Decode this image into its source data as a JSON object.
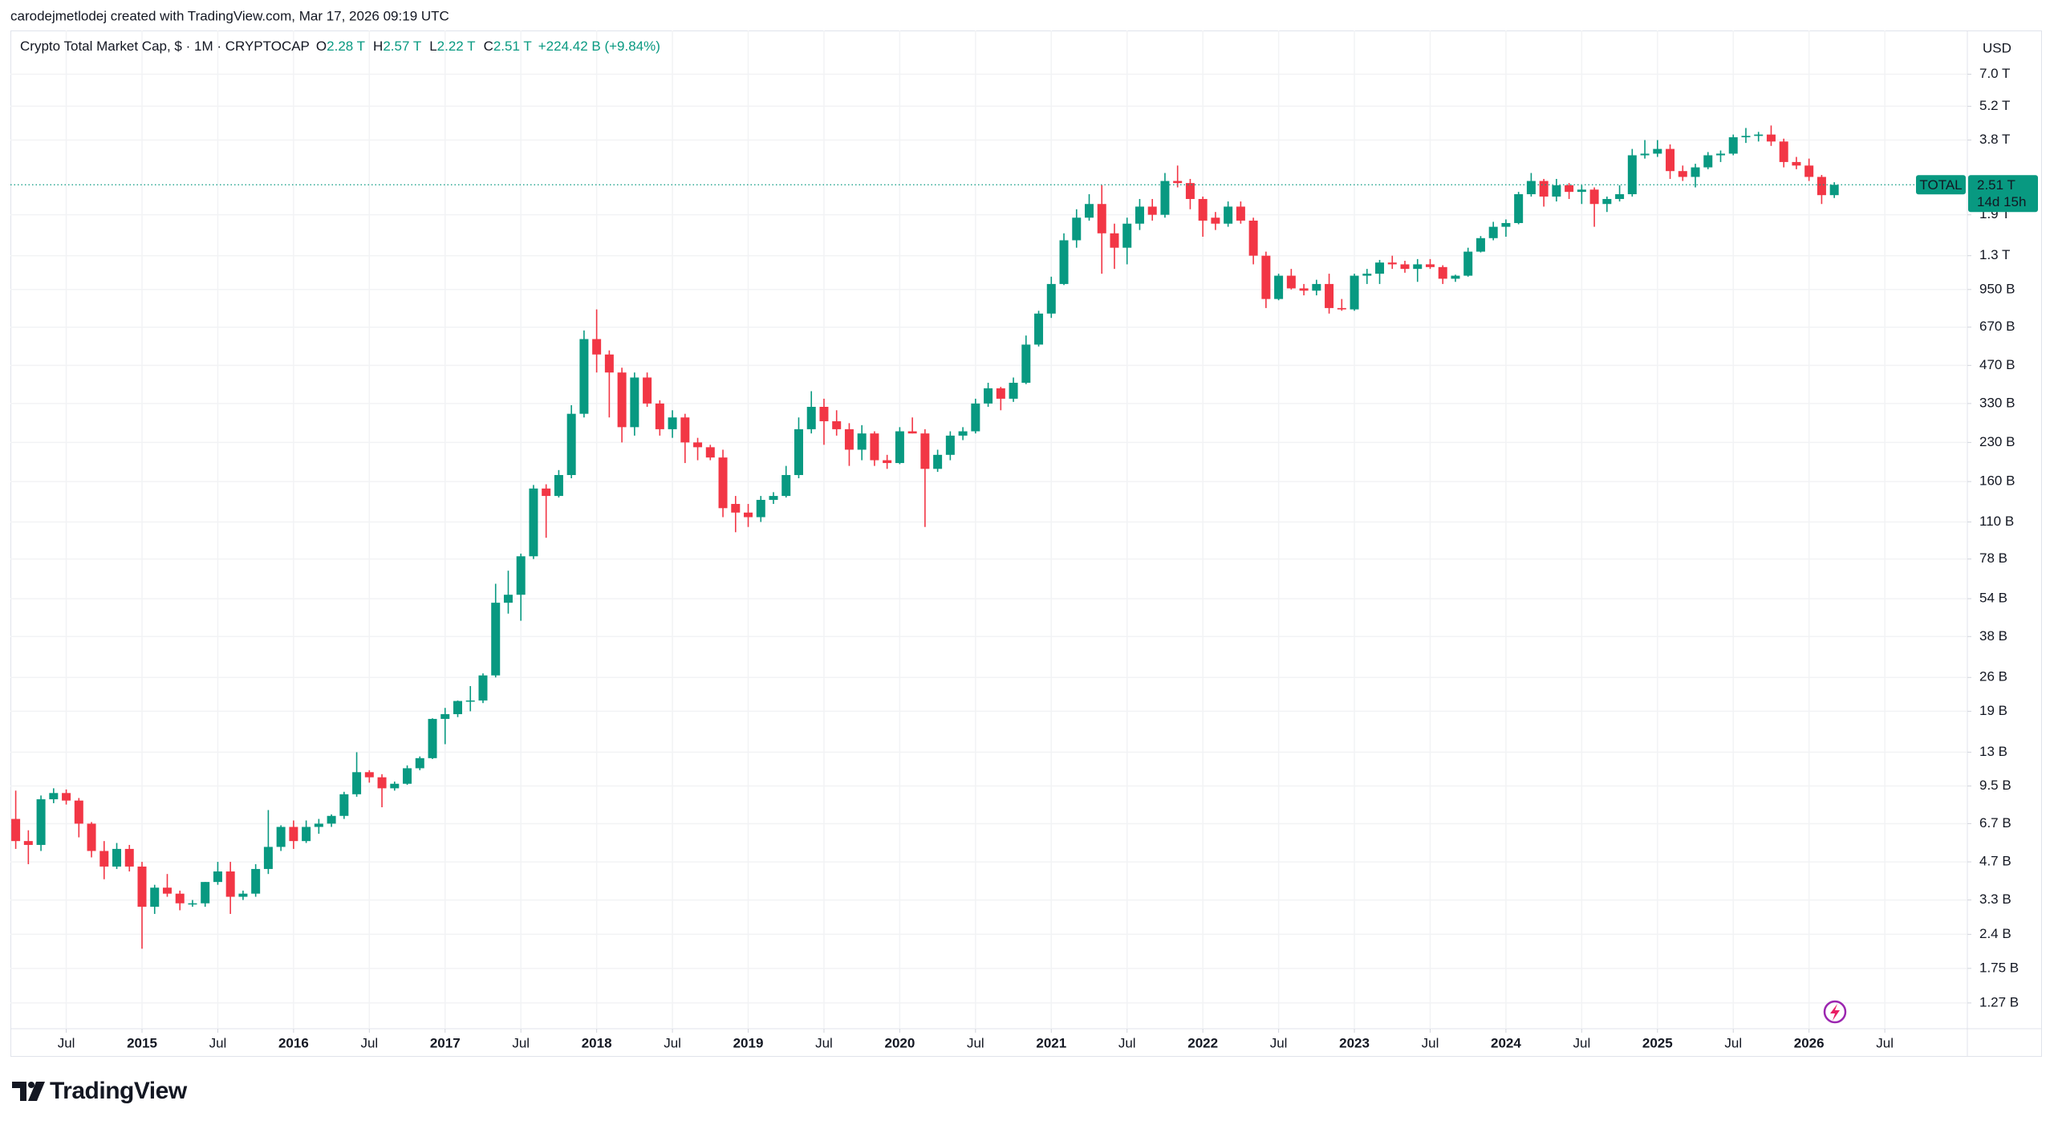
{
  "chart_data": {
    "type": "candlestick",
    "attribution": "carodejmetlodej created with TradingView.com, Mar 17, 2026 09:19 UTC",
    "title": "Crypto Total Market Cap, $ · 1M · CRYPTOCAP",
    "legend": [
      {
        "key": "O",
        "value": "2.28 T"
      },
      {
        "key": "H",
        "value": "2.57 T"
      },
      {
        "key": "L",
        "value": "2.22 T"
      },
      {
        "key": "C",
        "value": "2.51 T"
      }
    ],
    "change": "+224.42 B (+9.84%)",
    "currency": "USD",
    "series_name": "TOTAL",
    "last_value_label": "2.51 T",
    "countdown": "14d 15h",
    "brand": "TradingView",
    "up_color": "#089981",
    "down_color": "#f23645",
    "log_scale": true,
    "grid": true,
    "x": [
      "2014-03",
      "2014-04",
      "2014-05",
      "2014-06",
      "2014-07",
      "2014-08",
      "2014-09",
      "2014-10",
      "2014-11",
      "2014-12",
      "2015-01",
      "2015-02",
      "2015-03",
      "2015-04",
      "2015-05",
      "2015-06",
      "2015-07",
      "2015-08",
      "2015-09",
      "2015-10",
      "2015-11",
      "2015-12",
      "2016-01",
      "2016-02",
      "2016-03",
      "2016-04",
      "2016-05",
      "2016-06",
      "2016-07",
      "2016-08",
      "2016-09",
      "2016-10",
      "2016-11",
      "2016-12",
      "2017-01",
      "2017-02",
      "2017-03",
      "2017-04",
      "2017-05",
      "2017-06",
      "2017-07",
      "2017-08",
      "2017-09",
      "2017-10",
      "2017-11",
      "2017-12",
      "2018-01",
      "2018-02",
      "2018-03",
      "2018-04",
      "2018-05",
      "2018-06",
      "2018-07",
      "2018-08",
      "2018-09",
      "2018-10",
      "2018-11",
      "2018-12",
      "2019-01",
      "2019-02",
      "2019-03",
      "2019-04",
      "2019-05",
      "2019-06",
      "2019-07",
      "2019-08",
      "2019-09",
      "2019-10",
      "2019-11",
      "2019-12",
      "2020-01",
      "2020-02",
      "2020-03",
      "2020-04",
      "2020-05",
      "2020-06",
      "2020-07",
      "2020-08",
      "2020-09",
      "2020-10",
      "2020-11",
      "2020-12",
      "2021-01",
      "2021-02",
      "2021-03",
      "2021-04",
      "2021-05",
      "2021-06",
      "2021-07",
      "2021-08",
      "2021-09",
      "2021-10",
      "2021-11",
      "2021-12",
      "2022-01",
      "2022-02",
      "2022-03",
      "2022-04",
      "2022-05",
      "2022-06",
      "2022-07",
      "2022-08",
      "2022-09",
      "2022-10",
      "2022-11",
      "2022-12",
      "2023-01",
      "2023-02",
      "2023-03",
      "2023-04",
      "2023-05",
      "2023-06",
      "2023-07",
      "2023-08",
      "2023-09",
      "2023-10",
      "2023-11",
      "2023-12",
      "2024-01",
      "2024-02",
      "2024-03",
      "2024-04",
      "2024-05",
      "2024-06",
      "2024-07",
      "2024-08",
      "2024-09",
      "2024-10",
      "2024-11",
      "2024-12",
      "2025-01",
      "2025-02",
      "2025-03",
      "2025-04",
      "2025-05",
      "2025-06",
      "2025-07",
      "2025-08",
      "2025-09",
      "2025-10",
      "2025-11",
      "2025-12",
      "2026-01",
      "2026-02",
      "2026-03"
    ],
    "open": [
      7.0,
      5.7,
      5.5,
      8.4,
      8.9,
      8.3,
      6.7,
      5.2,
      4.5,
      5.3,
      4.5,
      3.1,
      3.7,
      3.5,
      3.2,
      3.2,
      3.9,
      4.3,
      3.4,
      3.5,
      4.4,
      5.4,
      6.5,
      5.7,
      6.5,
      6.7,
      7.2,
      8.8,
      10.8,
      10.3,
      9.3,
      9.7,
      11.2,
      12.3,
      17.7,
      18.5,
      20.9,
      21,
      26.5,
      52,
      56,
      80,
      150,
      140,
      170,
      300,
      600,
      520,
      440,
      265,
      420,
      330,
      260,
      290,
      230,
      220,
      200,
      130,
      120,
      115,
      135,
      140,
      170,
      260,
      320,
      280,
      260,
      215,
      250,
      195,
      190,
      255,
      250,
      180,
      205,
      245,
      255,
      330,
      380,
      345,
      400,
      570,
      760,
      1000,
      1500,
      1850,
      2100,
      1600,
      1400,
      1750,
      2050,
      1900,
      2600,
      2550,
      2200,
      1850,
      1750,
      2050,
      1800,
      1300,
      870,
      1080,
      960,
      940,
      1000,
      800,
      790,
      1080,
      1100,
      1220,
      1200,
      1150,
      1200,
      1170,
      1050,
      1080,
      1350,
      1530,
      1700,
      1760,
      2300,
      2600,
      2250,
      2500,
      2350,
      2400,
      2100,
      2200,
      2300,
      3300,
      3350,
      3500,
      2850,
      2700,
      2950,
      3300,
      3350,
      3900,
      3950,
      4000,
      3750,
      3100,
      3000,
      2700,
      2280
    ],
    "high": [
      9.1,
      6.3,
      8.7,
      9.3,
      9.2,
      8.5,
      6.8,
      5.7,
      5.6,
      5.5,
      4.7,
      3.8,
      4.2,
      3.6,
      3.3,
      3.9,
      4.7,
      4.7,
      3.6,
      4.6,
      7.6,
      6.6,
      6.9,
      6.9,
      7.0,
      7.3,
      9.0,
      13,
      11.0,
      10.6,
      9.9,
      11.5,
      12.5,
      17.8,
      19.6,
      21,
      24,
      27,
      62,
      70,
      82,
      155,
      156,
      178,
      325,
      650,
      790,
      540,
      460,
      440,
      440,
      340,
      310,
      300,
      240,
      225,
      215,
      140,
      130,
      140,
      145,
      185,
      290,
      370,
      345,
      310,
      275,
      270,
      255,
      205,
      265,
      290,
      260,
      215,
      255,
      265,
      345,
      400,
      385,
      420,
      620,
      780,
      1070,
      1600,
      2000,
      2300,
      2500,
      1750,
      1850,
      2200,
      2200,
      2800,
      3000,
      2650,
      2250,
      1950,
      2150,
      2150,
      1850,
      1350,
      1100,
      1150,
      1000,
      1040,
      1100,
      870,
      1100,
      1150,
      1250,
      1300,
      1240,
      1260,
      1260,
      1190,
      1090,
      1400,
      1560,
      1780,
      1820,
      2350,
      2800,
      2650,
      2650,
      2550,
      2500,
      2450,
      2250,
      2500,
      3500,
      3800,
      3800,
      3650,
      3000,
      3050,
      3400,
      3450,
      4000,
      4250,
      4100,
      4350,
      3850,
      3250,
      3200,
      2750,
      2570
    ],
    "low": [
      5.3,
      4.6,
      5.2,
      8.1,
      8.0,
      5.9,
      4.9,
      4.0,
      4.4,
      4.3,
      2.1,
      2.9,
      3.4,
      3.0,
      3.1,
      3.1,
      3.8,
      2.9,
      3.3,
      3.4,
      4.2,
      5.2,
      5.3,
      5.6,
      6.1,
      6.5,
      7.0,
      8.6,
      9.8,
      7.8,
      9.1,
      9.6,
      11.0,
      12.2,
      14,
      18,
      19,
      20.5,
      26,
      47,
      44,
      78,
      95,
      138,
      165,
      290,
      440,
      290,
      230,
      245,
      320,
      245,
      240,
      190,
      195,
      195,
      115,
      100,
      105,
      110,
      130,
      138,
      165,
      250,
      225,
      245,
      185,
      195,
      185,
      180,
      188,
      250,
      105,
      175,
      195,
      235,
      250,
      320,
      310,
      335,
      395,
      560,
      730,
      990,
      1400,
      1800,
      1100,
      1150,
      1200,
      1650,
      1800,
      1850,
      2450,
      2000,
      1550,
      1650,
      1700,
      1750,
      1200,
      800,
      860,
      950,
      900,
      900,
      760,
      780,
      780,
      1000,
      1000,
      1150,
      1110,
      1020,
      1150,
      1000,
      1020,
      1070,
      1340,
      1500,
      1550,
      1740,
      2250,
      2050,
      2150,
      2200,
      2100,
      1700,
      1950,
      2150,
      2250,
      3200,
      3250,
      2650,
      2600,
      2450,
      2900,
      3100,
      3300,
      3700,
      3750,
      3600,
      2950,
      2900,
      2600,
      2100,
      2220
    ],
    "close": [
      5.7,
      5.5,
      8.4,
      8.9,
      8.3,
      6.7,
      5.2,
      4.5,
      5.3,
      4.5,
      3.1,
      3.7,
      3.5,
      3.2,
      3.2,
      3.9,
      4.3,
      3.4,
      3.5,
      4.4,
      5.4,
      6.5,
      5.7,
      6.5,
      6.7,
      7.2,
      8.8,
      10.8,
      10.3,
      9.3,
      9.7,
      11.2,
      12.3,
      17.7,
      18.5,
      20.9,
      21,
      26.5,
      52,
      56,
      80,
      150,
      140,
      170,
      300,
      600,
      520,
      440,
      265,
      420,
      330,
      260,
      290,
      230,
      220,
      200,
      125,
      120,
      115,
      135,
      140,
      170,
      260,
      320,
      280,
      260,
      215,
      250,
      195,
      190,
      255,
      250,
      180,
      205,
      245,
      255,
      330,
      380,
      345,
      400,
      570,
      760,
      1000,
      1500,
      1850,
      2100,
      1600,
      1400,
      1750,
      2050,
      1900,
      2600,
      2550,
      2200,
      1800,
      1750,
      2050,
      1800,
      1300,
      870,
      1080,
      960,
      940,
      1000,
      800,
      790,
      1080,
      1100,
      1220,
      1200,
      1150,
      1200,
      1170,
      1050,
      1080,
      1350,
      1530,
      1700,
      1760,
      2300,
      2600,
      2250,
      2500,
      2350,
      2400,
      2100,
      2200,
      2300,
      3300,
      3350,
      3500,
      2850,
      2700,
      2950,
      3300,
      3350,
      3900,
      3950,
      4000,
      3750,
      3100,
      3000,
      2700,
      2280,
      2510
    ],
    "ylim": [
      1,
      10500
    ],
    "yticks": [
      {
        "value": 1.27,
        "label": "1.27 B"
      },
      {
        "value": 1.75,
        "label": "1.75 B"
      },
      {
        "value": 2.4,
        "label": "2.4 B"
      },
      {
        "value": 3.3,
        "label": "3.3 B"
      },
      {
        "value": 4.7,
        "label": "4.7 B"
      },
      {
        "value": 6.7,
        "label": "6.7 B"
      },
      {
        "value": 9.5,
        "label": "9.5 B"
      },
      {
        "value": 13,
        "label": "13 B"
      },
      {
        "value": 19,
        "label": "19 B"
      },
      {
        "value": 26,
        "label": "26 B"
      },
      {
        "value": 38,
        "label": "38 B"
      },
      {
        "value": 54,
        "label": "54 B"
      },
      {
        "value": 78,
        "label": "78 B"
      },
      {
        "value": 110,
        "label": "110 B"
      },
      {
        "value": 160,
        "label": "160 B"
      },
      {
        "value": 230,
        "label": "230 B"
      },
      {
        "value": 330,
        "label": "330 B"
      },
      {
        "value": 470,
        "label": "470 B"
      },
      {
        "value": 670,
        "label": "670 B"
      },
      {
        "value": 950,
        "label": "950 B"
      },
      {
        "value": 1300,
        "label": "1.3 T"
      },
      {
        "value": 1900,
        "label": "1.9 T"
      },
      {
        "value": 3800,
        "label": "3.8 T"
      },
      {
        "value": 5200,
        "label": "5.2 T"
      },
      {
        "value": 7000,
        "label": "7.0 T"
      }
    ],
    "xticks": [
      {
        "value": "2014-07",
        "label": "Jul"
      },
      {
        "value": "2015-01",
        "label": "2015"
      },
      {
        "value": "2015-07",
        "label": "Jul"
      },
      {
        "value": "2016-01",
        "label": "2016"
      },
      {
        "value": "2016-07",
        "label": "Jul"
      },
      {
        "value": "2017-01",
        "label": "2017"
      },
      {
        "value": "2017-07",
        "label": "Jul"
      },
      {
        "value": "2018-01",
        "label": "2018"
      },
      {
        "value": "2018-07",
        "label": "Jul"
      },
      {
        "value": "2019-01",
        "label": "2019"
      },
      {
        "value": "2019-07",
        "label": "Jul"
      },
      {
        "value": "2020-01",
        "label": "2020"
      },
      {
        "value": "2020-07",
        "label": "Jul"
      },
      {
        "value": "2021-01",
        "label": "2021"
      },
      {
        "value": "2021-07",
        "label": "Jul"
      },
      {
        "value": "2022-01",
        "label": "2022"
      },
      {
        "value": "2022-07",
        "label": "Jul"
      },
      {
        "value": "2023-01",
        "label": "2023"
      },
      {
        "value": "2023-07",
        "label": "Jul"
      },
      {
        "value": "2024-01",
        "label": "2024"
      },
      {
        "value": "2024-07",
        "label": "Jul"
      },
      {
        "value": "2025-01",
        "label": "2025"
      },
      {
        "value": "2025-07",
        "label": "Jul"
      },
      {
        "value": "2026-01",
        "label": "2026"
      },
      {
        "value": "2026-07",
        "label": "Jul"
      }
    ]
  }
}
